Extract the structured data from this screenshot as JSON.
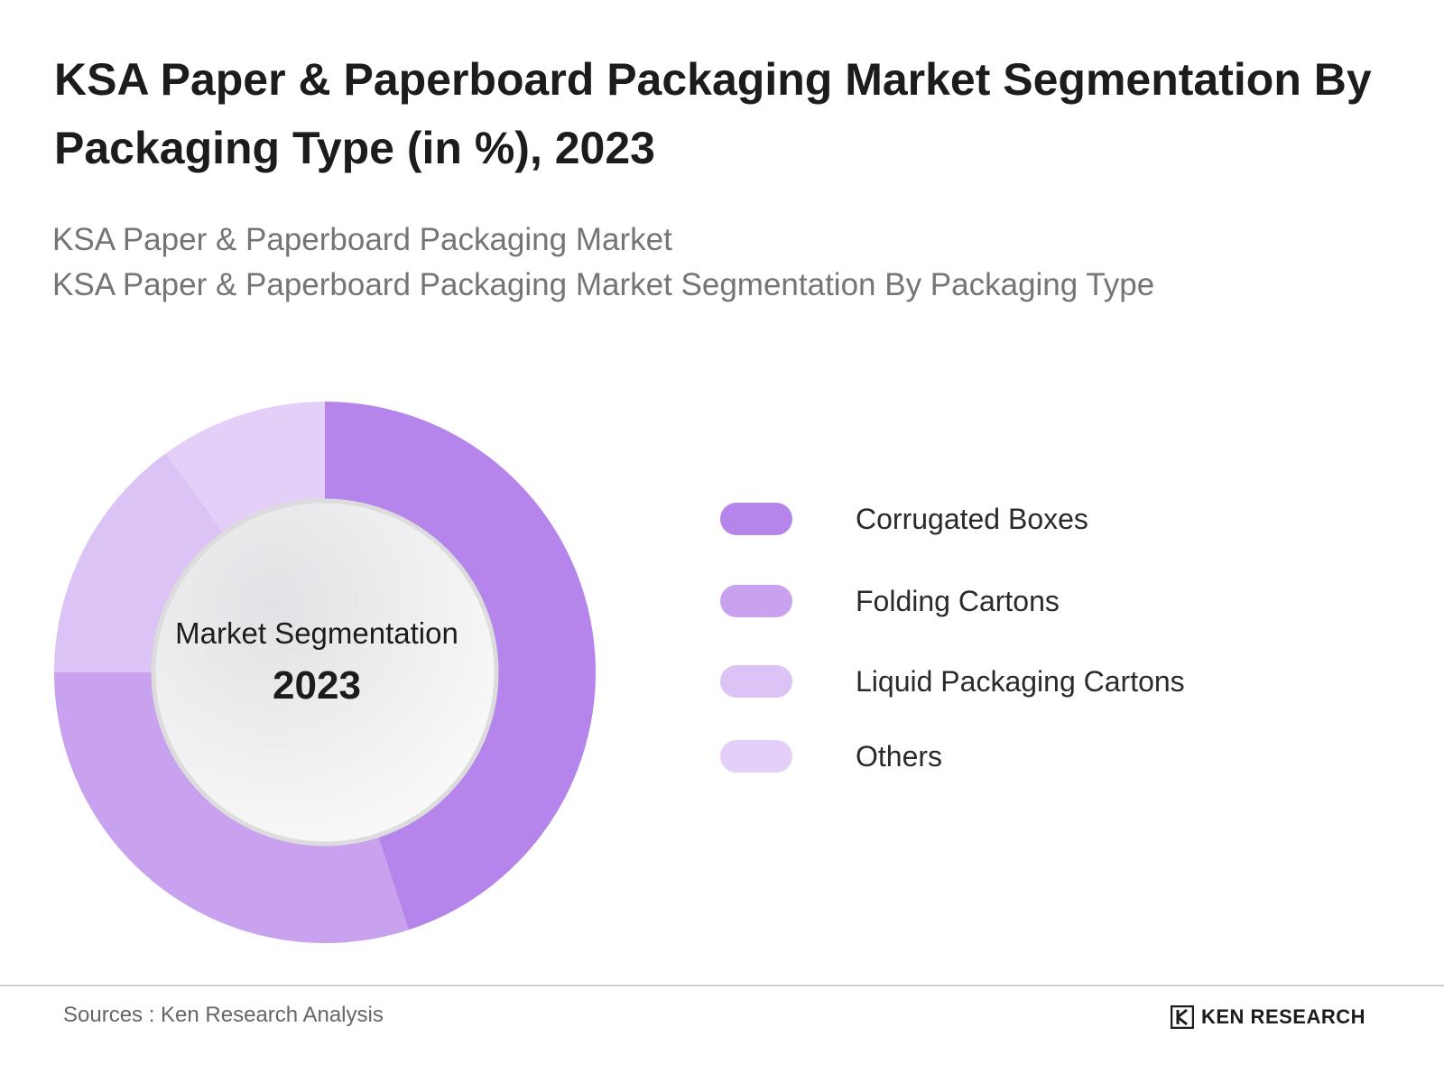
{
  "chart_data": {
    "type": "pie",
    "title": "KSA Paper & Paperboard Packaging Market Segmentation By Packaging Type (in %), 2023",
    "subtitle_lines": [
      "KSA Paper & Paperboard Packaging Market",
      "KSA Paper & Paperboard Packaging Market Segmentation By Packaging Type"
    ],
    "center_caption": "Market Segmentation",
    "center_year": "2023",
    "categories": [
      "Corrugated Boxes",
      "Folding Cartons",
      "Liquid Packaging Cartons",
      "Others"
    ],
    "values": [
      45,
      30,
      15,
      10
    ],
    "colors": [
      "#b585ec",
      "#c8a2ef",
      "#dbc3f5",
      "#e4cff8"
    ],
    "legend_position": "right"
  },
  "footer": {
    "source": "Sources : Ken Research Analysis",
    "logo_text": "KEN RESEARCH"
  }
}
